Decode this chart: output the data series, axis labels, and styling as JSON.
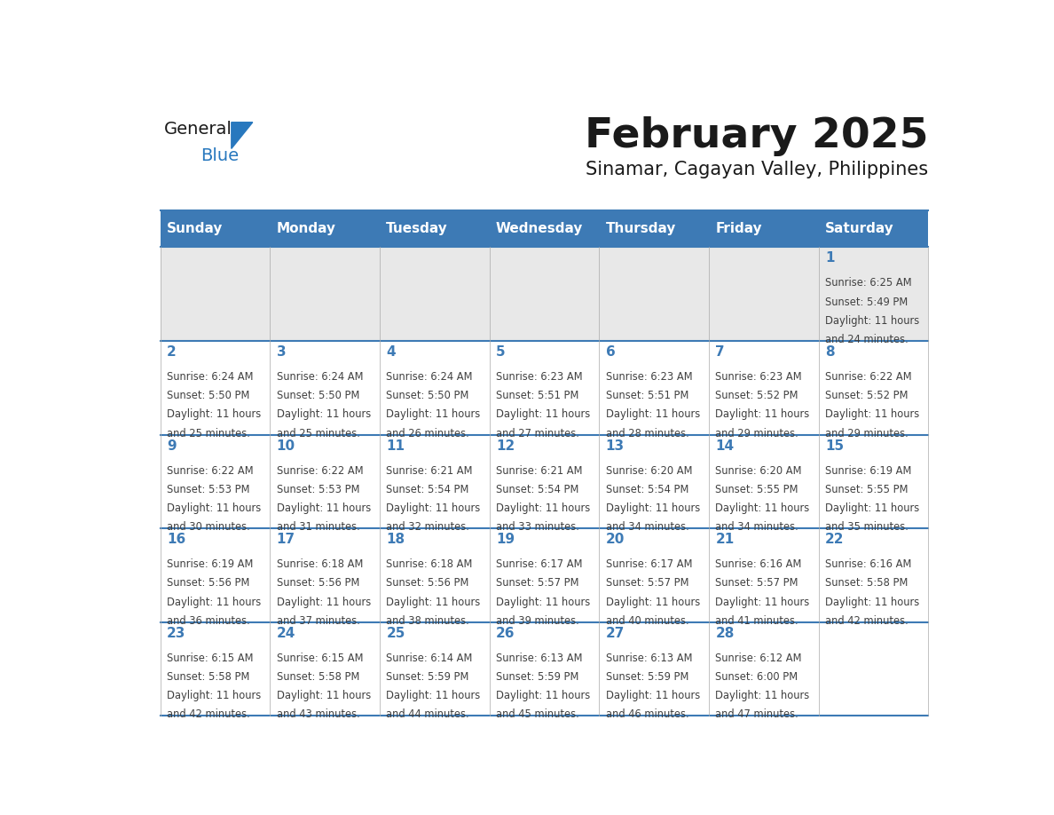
{
  "title": "February 2025",
  "subtitle": "Sinamar, Cagayan Valley, Philippines",
  "days_of_week": [
    "Sunday",
    "Monday",
    "Tuesday",
    "Wednesday",
    "Thursday",
    "Friday",
    "Saturday"
  ],
  "header_bg": "#3D7AB5",
  "header_text": "#FFFFFF",
  "row1_bg": "#E8E8E8",
  "row_bg": "#FFFFFF",
  "separator_color": "#3D7AB5",
  "day_num_color": "#3D7AB5",
  "cell_text_color": "#404040",
  "title_color": "#1a1a1a",
  "subtitle_color": "#1a1a1a",
  "logo_general_color": "#1a1a1a",
  "logo_blue_color": "#2878BE",
  "calendar_data": [
    [
      {
        "day": null,
        "sunrise": null,
        "sunset": null,
        "daylight": null
      },
      {
        "day": null,
        "sunrise": null,
        "sunset": null,
        "daylight": null
      },
      {
        "day": null,
        "sunrise": null,
        "sunset": null,
        "daylight": null
      },
      {
        "day": null,
        "sunrise": null,
        "sunset": null,
        "daylight": null
      },
      {
        "day": null,
        "sunrise": null,
        "sunset": null,
        "daylight": null
      },
      {
        "day": null,
        "sunrise": null,
        "sunset": null,
        "daylight": null
      },
      {
        "day": 1,
        "sunrise": "6:25 AM",
        "sunset": "5:49 PM",
        "daylight": "11 hours\nand 24 minutes."
      }
    ],
    [
      {
        "day": 2,
        "sunrise": "6:24 AM",
        "sunset": "5:50 PM",
        "daylight": "11 hours\nand 25 minutes."
      },
      {
        "day": 3,
        "sunrise": "6:24 AM",
        "sunset": "5:50 PM",
        "daylight": "11 hours\nand 25 minutes."
      },
      {
        "day": 4,
        "sunrise": "6:24 AM",
        "sunset": "5:50 PM",
        "daylight": "11 hours\nand 26 minutes."
      },
      {
        "day": 5,
        "sunrise": "6:23 AM",
        "sunset": "5:51 PM",
        "daylight": "11 hours\nand 27 minutes."
      },
      {
        "day": 6,
        "sunrise": "6:23 AM",
        "sunset": "5:51 PM",
        "daylight": "11 hours\nand 28 minutes."
      },
      {
        "day": 7,
        "sunrise": "6:23 AM",
        "sunset": "5:52 PM",
        "daylight": "11 hours\nand 29 minutes."
      },
      {
        "day": 8,
        "sunrise": "6:22 AM",
        "sunset": "5:52 PM",
        "daylight": "11 hours\nand 29 minutes."
      }
    ],
    [
      {
        "day": 9,
        "sunrise": "6:22 AM",
        "sunset": "5:53 PM",
        "daylight": "11 hours\nand 30 minutes."
      },
      {
        "day": 10,
        "sunrise": "6:22 AM",
        "sunset": "5:53 PM",
        "daylight": "11 hours\nand 31 minutes."
      },
      {
        "day": 11,
        "sunrise": "6:21 AM",
        "sunset": "5:54 PM",
        "daylight": "11 hours\nand 32 minutes."
      },
      {
        "day": 12,
        "sunrise": "6:21 AM",
        "sunset": "5:54 PM",
        "daylight": "11 hours\nand 33 minutes."
      },
      {
        "day": 13,
        "sunrise": "6:20 AM",
        "sunset": "5:54 PM",
        "daylight": "11 hours\nand 34 minutes."
      },
      {
        "day": 14,
        "sunrise": "6:20 AM",
        "sunset": "5:55 PM",
        "daylight": "11 hours\nand 34 minutes."
      },
      {
        "day": 15,
        "sunrise": "6:19 AM",
        "sunset": "5:55 PM",
        "daylight": "11 hours\nand 35 minutes."
      }
    ],
    [
      {
        "day": 16,
        "sunrise": "6:19 AM",
        "sunset": "5:56 PM",
        "daylight": "11 hours\nand 36 minutes."
      },
      {
        "day": 17,
        "sunrise": "6:18 AM",
        "sunset": "5:56 PM",
        "daylight": "11 hours\nand 37 minutes."
      },
      {
        "day": 18,
        "sunrise": "6:18 AM",
        "sunset": "5:56 PM",
        "daylight": "11 hours\nand 38 minutes."
      },
      {
        "day": 19,
        "sunrise": "6:17 AM",
        "sunset": "5:57 PM",
        "daylight": "11 hours\nand 39 minutes."
      },
      {
        "day": 20,
        "sunrise": "6:17 AM",
        "sunset": "5:57 PM",
        "daylight": "11 hours\nand 40 minutes."
      },
      {
        "day": 21,
        "sunrise": "6:16 AM",
        "sunset": "5:57 PM",
        "daylight": "11 hours\nand 41 minutes."
      },
      {
        "day": 22,
        "sunrise": "6:16 AM",
        "sunset": "5:58 PM",
        "daylight": "11 hours\nand 42 minutes."
      }
    ],
    [
      {
        "day": 23,
        "sunrise": "6:15 AM",
        "sunset": "5:58 PM",
        "daylight": "11 hours\nand 42 minutes."
      },
      {
        "day": 24,
        "sunrise": "6:15 AM",
        "sunset": "5:58 PM",
        "daylight": "11 hours\nand 43 minutes."
      },
      {
        "day": 25,
        "sunrise": "6:14 AM",
        "sunset": "5:59 PM",
        "daylight": "11 hours\nand 44 minutes."
      },
      {
        "day": 26,
        "sunrise": "6:13 AM",
        "sunset": "5:59 PM",
        "daylight": "11 hours\nand 45 minutes."
      },
      {
        "day": 27,
        "sunrise": "6:13 AM",
        "sunset": "5:59 PM",
        "daylight": "11 hours\nand 46 minutes."
      },
      {
        "day": 28,
        "sunrise": "6:12 AM",
        "sunset": "6:00 PM",
        "daylight": "11 hours\nand 47 minutes."
      },
      {
        "day": null,
        "sunrise": null,
        "sunset": null,
        "daylight": null
      }
    ]
  ]
}
